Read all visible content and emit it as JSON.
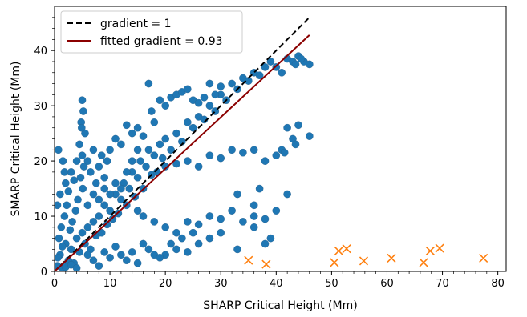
{
  "chart_data": {
    "type": "scatter",
    "xlabel": "SHARP Critical Height (Mm)",
    "ylabel": "SMARP Critical Height (Mm)",
    "xlim": [
      0,
      81.5
    ],
    "ylim": [
      0,
      48
    ],
    "x_ticks": [
      "0",
      "10",
      "20",
      "30",
      "40",
      "50",
      "60",
      "70",
      "80"
    ],
    "y_ticks": [
      "0",
      "10",
      "20",
      "30",
      "40"
    ],
    "grid": false,
    "legend_position": "top-left",
    "legend": [
      {
        "label": "gradient = 1",
        "style": "dashed",
        "color": "#000000"
      },
      {
        "label": "fitted gradient = 0.93",
        "style": "solid",
        "color": "#8b0000"
      }
    ],
    "lines": [
      {
        "name": "gradient = 1",
        "x": [
          0,
          46
        ],
        "y": [
          0,
          46
        ]
      },
      {
        "name": "fitted gradient = 0.93",
        "x": [
          0,
          46
        ],
        "y": [
          0,
          42.8
        ]
      }
    ],
    "series": [
      {
        "marker": "circle",
        "color": "#1f77b4",
        "points": [
          [
            0.5,
            1.0
          ],
          [
            1.0,
            3.0
          ],
          [
            1.5,
            0.5
          ],
          [
            2.0,
            5.0
          ],
          [
            2.5,
            2.0
          ],
          [
            3.0,
            4.0
          ],
          [
            3.5,
            1.5
          ],
          [
            4.0,
            6.0
          ],
          [
            4.5,
            3.5
          ],
          [
            5.0,
            7.0
          ],
          [
            0.8,
            6.0
          ],
          [
            1.2,
            8.0
          ],
          [
            1.8,
            10.0
          ],
          [
            2.2,
            12.0
          ],
          [
            0.6,
            2.5
          ],
          [
            1.4,
            4.5
          ],
          [
            2.8,
            7.5
          ],
          [
            3.2,
            9.0
          ],
          [
            3.8,
            11.0
          ],
          [
            4.2,
            13.0
          ],
          [
            5.5,
            5.0
          ],
          [
            6.0,
            8.0
          ],
          [
            6.5,
            4.0
          ],
          [
            7.0,
            9.0
          ],
          [
            7.5,
            6.5
          ],
          [
            8.0,
            10.0
          ],
          [
            8.5,
            7.0
          ],
          [
            9.0,
            12.0
          ],
          [
            9.5,
            8.5
          ],
          [
            10.0,
            11.0
          ],
          [
            10.5,
            9.5
          ],
          [
            11.0,
            14.0
          ],
          [
            11.5,
            10.5
          ],
          [
            12.0,
            13.0
          ],
          [
            12.5,
            16.0
          ],
          [
            13.0,
            12.0
          ],
          [
            13.5,
            15.0
          ],
          [
            14.0,
            18.0
          ],
          [
            14.5,
            13.5
          ],
          [
            15.0,
            17.0
          ],
          [
            15.5,
            20.0
          ],
          [
            16.0,
            15.0
          ],
          [
            16.5,
            19.0
          ],
          [
            17.0,
            22.0
          ],
          [
            17.5,
            17.5
          ],
          [
            18.0,
            21.0
          ],
          [
            18.5,
            18.0
          ],
          [
            19.0,
            23.0
          ],
          [
            19.5,
            20.5
          ],
          [
            20.0,
            24.0
          ],
          [
            21.0,
            22.0
          ],
          [
            22.0,
            25.0
          ],
          [
            23.0,
            23.5
          ],
          [
            24.0,
            27.0
          ],
          [
            25.0,
            26.0
          ],
          [
            26.0,
            28.0
          ],
          [
            27.0,
            27.5
          ],
          [
            28.0,
            30.0
          ],
          [
            29.0,
            29.0
          ],
          [
            30.0,
            32.0
          ],
          [
            31.0,
            31.0
          ],
          [
            32.0,
            34.0
          ],
          [
            33.0,
            33.0
          ],
          [
            34.0,
            35.0
          ],
          [
            35.0,
            34.5
          ],
          [
            36.0,
            36.0
          ],
          [
            37.0,
            35.5
          ],
          [
            38.0,
            37.0
          ],
          [
            39.0,
            38.0
          ],
          [
            40.0,
            37.0
          ],
          [
            41.0,
            36.0
          ],
          [
            42.0,
            38.5
          ],
          [
            43.0,
            38.0
          ],
          [
            44.0,
            39.0
          ],
          [
            45.0,
            38.0
          ],
          [
            46.0,
            37.5
          ],
          [
            44.5,
            38.5
          ],
          [
            43.5,
            37.5
          ],
          [
            5.0,
            31.0
          ],
          [
            5.2,
            29.0
          ],
          [
            4.8,
            27.0
          ],
          [
            5.5,
            25.0
          ],
          [
            4.5,
            23.0
          ],
          [
            5.0,
            21.0
          ],
          [
            5.3,
            19.0
          ],
          [
            4.7,
            17.0
          ],
          [
            5.1,
            15.0
          ],
          [
            4.9,
            26.0
          ],
          [
            6.0,
            20.0
          ],
          [
            6.5,
            18.0
          ],
          [
            7.0,
            22.0
          ],
          [
            7.5,
            16.0
          ],
          [
            8.0,
            19.0
          ],
          [
            8.5,
            21.0
          ],
          [
            9.0,
            17.0
          ],
          [
            9.5,
            20.0
          ],
          [
            10.0,
            22.0
          ],
          [
            11.0,
            24.0
          ],
          [
            12.0,
            23.0
          ],
          [
            13.0,
            26.5
          ],
          [
            14.0,
            25.0
          ],
          [
            15.0,
            26.0
          ],
          [
            16.0,
            24.5
          ],
          [
            17.0,
            34.0
          ],
          [
            17.5,
            29.0
          ],
          [
            18.0,
            27.0
          ],
          [
            19.0,
            31.0
          ],
          [
            20.0,
            30.0
          ],
          [
            21.0,
            31.5
          ],
          [
            22.0,
            32.0
          ],
          [
            23.0,
            32.5
          ],
          [
            24.0,
            33.0
          ],
          [
            25.0,
            31.0
          ],
          [
            26.0,
            30.5
          ],
          [
            27.0,
            31.5
          ],
          [
            28.0,
            34.0
          ],
          [
            29.0,
            32.0
          ],
          [
            30.0,
            33.5
          ],
          [
            20.0,
            19.0
          ],
          [
            22.0,
            19.5
          ],
          [
            24.0,
            20.0
          ],
          [
            26.0,
            19.0
          ],
          [
            28.0,
            21.0
          ],
          [
            30.0,
            20.5
          ],
          [
            32.0,
            22.0
          ],
          [
            34.0,
            21.5
          ],
          [
            36.0,
            22.0
          ],
          [
            38.0,
            20.0
          ],
          [
            40.0,
            21.0
          ],
          [
            41.0,
            22.0
          ],
          [
            42.0,
            26.0
          ],
          [
            43.0,
            24.0
          ],
          [
            44.0,
            26.5
          ],
          [
            46.0,
            24.5
          ],
          [
            41.5,
            21.5
          ],
          [
            43.5,
            23.0
          ],
          [
            15.0,
            11.0
          ],
          [
            16.0,
            10.0
          ],
          [
            18.0,
            9.0
          ],
          [
            20.0,
            8.0
          ],
          [
            22.0,
            7.0
          ],
          [
            24.0,
            9.0
          ],
          [
            26.0,
            8.5
          ],
          [
            28.0,
            10.0
          ],
          [
            30.0,
            9.5
          ],
          [
            32.0,
            11.0
          ],
          [
            34.0,
            9.0
          ],
          [
            36.0,
            10.0
          ],
          [
            38.0,
            9.5
          ],
          [
            40.0,
            11.0
          ],
          [
            42.0,
            14.0
          ],
          [
            36.0,
            12.0
          ],
          [
            33.0,
            14.0
          ],
          [
            37.0,
            15.0
          ],
          [
            20.0,
            3.0
          ],
          [
            21.0,
            5.0
          ],
          [
            22.0,
            4.0
          ],
          [
            23.0,
            6.0
          ],
          [
            24.0,
            3.5
          ],
          [
            25.0,
            7.0
          ],
          [
            26.0,
            5.0
          ],
          [
            28.0,
            6.0
          ],
          [
            30.0,
            7.0
          ],
          [
            33.0,
            4.0
          ],
          [
            36.0,
            8.0
          ],
          [
            38.0,
            5.0
          ],
          [
            39.0,
            6.0
          ],
          [
            17.0,
            4.0
          ],
          [
            18.0,
            3.0
          ],
          [
            13.0,
            2.0
          ],
          [
            14.0,
            3.5
          ],
          [
            15.0,
            1.5
          ],
          [
            16.0,
            5.0
          ],
          [
            19.0,
            2.5
          ],
          [
            1.0,
            14.0
          ],
          [
            2.0,
            16.0
          ],
          [
            3.0,
            18.0
          ],
          [
            1.5,
            20.0
          ],
          [
            0.7,
            22.0
          ],
          [
            2.5,
            14.5
          ],
          [
            3.5,
            16.5
          ],
          [
            0.5,
            12.0
          ],
          [
            1.8,
            18.0
          ],
          [
            4.0,
            20.0
          ],
          [
            6.0,
            3.0
          ],
          [
            7.0,
            2.0
          ],
          [
            8.0,
            1.0
          ],
          [
            9.0,
            3.5
          ],
          [
            10.0,
            2.5
          ],
          [
            11.0,
            4.5
          ],
          [
            12.0,
            3.0
          ],
          [
            2.0,
            0.8
          ],
          [
            3.0,
            1.2
          ],
          [
            4.0,
            0.6
          ],
          [
            6.0,
            12.0
          ],
          [
            7.0,
            14.0
          ],
          [
            8.0,
            13.0
          ],
          [
            9.0,
            15.0
          ],
          [
            10.0,
            14.0
          ],
          [
            11.0,
            16.0
          ],
          [
            12.0,
            15.0
          ],
          [
            13.0,
            18.0
          ],
          [
            14.0,
            20.0
          ],
          [
            15.0,
            22.0
          ]
        ]
      },
      {
        "marker": "x",
        "color": "#ff7f0e",
        "points": [
          [
            35.0,
            2.0
          ],
          [
            38.2,
            1.3
          ],
          [
            50.5,
            1.6
          ],
          [
            51.3,
            3.7
          ],
          [
            52.7,
            4.1
          ],
          [
            55.8,
            1.9
          ],
          [
            60.8,
            2.4
          ],
          [
            66.6,
            1.6
          ],
          [
            67.8,
            3.7
          ],
          [
            69.5,
            4.2
          ],
          [
            77.4,
            2.4
          ]
        ]
      }
    ]
  }
}
